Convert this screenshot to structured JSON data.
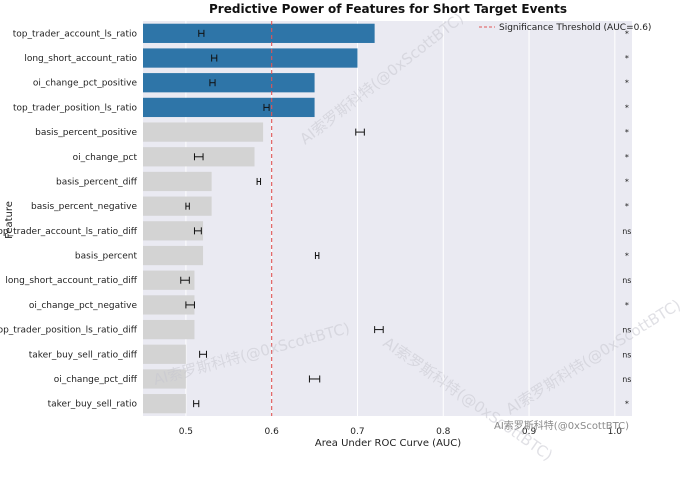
{
  "chart_data": {
    "type": "bar",
    "orientation": "horizontal",
    "title": "Predictive Power of Features for Short Target Events",
    "xlabel": "Area Under ROC Curve (AUC)",
    "ylabel": "Feature",
    "xlim": [
      0.45,
      1.02
    ],
    "xticks": [
      "0.5",
      "0.6",
      "0.7",
      "0.8",
      "0.9",
      "1.0"
    ],
    "xtick_values": [
      0.5,
      0.6,
      0.7,
      0.8,
      0.9,
      1.0
    ],
    "grid": true,
    "legend": {
      "label": "Significance Threshold (AUC=0.6)",
      "placement": "top-right"
    },
    "threshold": 0.6,
    "colors": {
      "significant": "#2e75a8",
      "not_significant": "#d3d3d3",
      "threshold": "#e05555",
      "background": "#eaeaf2"
    },
    "categories": [
      "top_trader_account_ls_ratio",
      "long_short_account_ratio",
      "oi_change_pct_positive",
      "top_trader_position_ls_ratio",
      "basis_percent_positive",
      "oi_change_pct",
      "basis_percent_diff",
      "basis_percent_negative",
      "top_trader_account_ls_ratio_diff",
      "basis_percent",
      "long_short_account_ratio_diff",
      "oi_change_pct_negative",
      "top_trader_position_ls_ratio_diff",
      "taker_buy_sell_ratio_diff",
      "oi_change_pct_diff",
      "taker_buy_sell_ratio"
    ],
    "values": [
      0.72,
      0.7,
      0.65,
      0.65,
      0.59,
      0.58,
      0.53,
      0.53,
      0.52,
      0.52,
      0.51,
      0.51,
      0.51,
      0.5,
      0.5,
      0.5
    ],
    "highlighted": [
      true,
      true,
      true,
      true,
      false,
      false,
      false,
      false,
      false,
      false,
      false,
      false,
      false,
      false,
      false,
      false
    ],
    "ci_center": [
      0.518,
      0.533,
      0.531,
      0.594,
      0.703,
      0.515,
      0.585,
      0.502,
      0.514,
      0.653,
      0.499,
      0.505,
      0.725,
      0.52,
      0.65,
      0.512
    ],
    "ci_halfwidth": [
      0.003,
      0.003,
      0.003,
      0.003,
      0.005,
      0.005,
      0.002,
      0.002,
      0.004,
      0.002,
      0.005,
      0.005,
      0.005,
      0.004,
      0.006,
      0.003
    ],
    "significance": [
      "*",
      "*",
      "*",
      "*",
      "*",
      "*",
      "*",
      "*",
      "ns",
      "*",
      "ns",
      "*",
      "ns",
      "ns",
      "ns",
      "*"
    ]
  },
  "watermarks": [
    "AI索罗斯科特(@0xScottBTC)",
    "AI索罗斯科特(@0xScottBTC)",
    "AI索罗斯科特(@0xScottBTC)",
    "AI索罗斯科特(@0xScottBTC)",
    "AI索罗斯科特(@0xScottBTC)"
  ]
}
